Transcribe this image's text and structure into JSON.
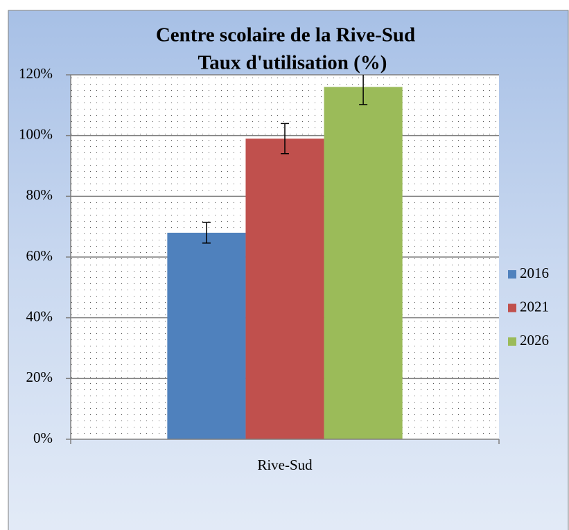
{
  "chart_data": {
    "type": "bar",
    "title": "Centre scolaire de la Rive-Sud",
    "subtitle": "Taux d'utilisation (%)",
    "categories": [
      "Rive-Sud"
    ],
    "series": [
      {
        "name": "2016",
        "color": "#4f81bd",
        "values": [
          68
        ],
        "errors": [
          3.4
        ]
      },
      {
        "name": "2021",
        "color": "#c0504d",
        "values": [
          99
        ],
        "errors": [
          4.95
        ]
      },
      {
        "name": "2026",
        "color": "#9bbb59",
        "values": [
          116
        ],
        "errors": [
          5.8
        ]
      }
    ],
    "ylim": [
      0,
      120
    ],
    "yticks": [
      {
        "value": 0,
        "label": "0%"
      },
      {
        "value": 20,
        "label": "20%"
      },
      {
        "value": 40,
        "label": "40%"
      },
      {
        "value": 60,
        "label": "60%"
      },
      {
        "value": 80,
        "label": "80%"
      },
      {
        "value": 100,
        "label": "100%"
      },
      {
        "value": 120,
        "label": "120%"
      }
    ],
    "grid": true,
    "legend": "right"
  }
}
